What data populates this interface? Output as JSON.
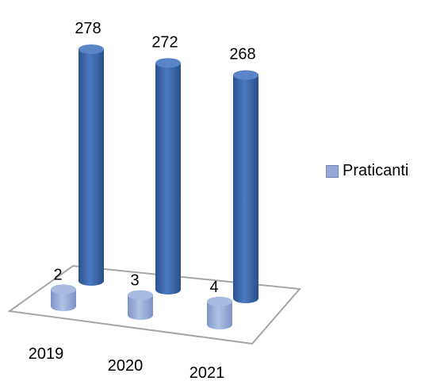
{
  "chart_data": {
    "type": "bar",
    "categories": [
      "2019",
      "2020",
      "2021"
    ],
    "series": [
      {
        "name": "",
        "values": [
          278,
          272,
          268
        ],
        "color": "#3f6db0"
      },
      {
        "name": "Praticanti",
        "values": [
          2,
          3,
          4
        ],
        "color": "#93a8d6"
      }
    ],
    "legend_position": "right",
    "grid": false,
    "three_d": true
  },
  "legend": {
    "label": "Praticanti",
    "color": "#93a8d6"
  }
}
